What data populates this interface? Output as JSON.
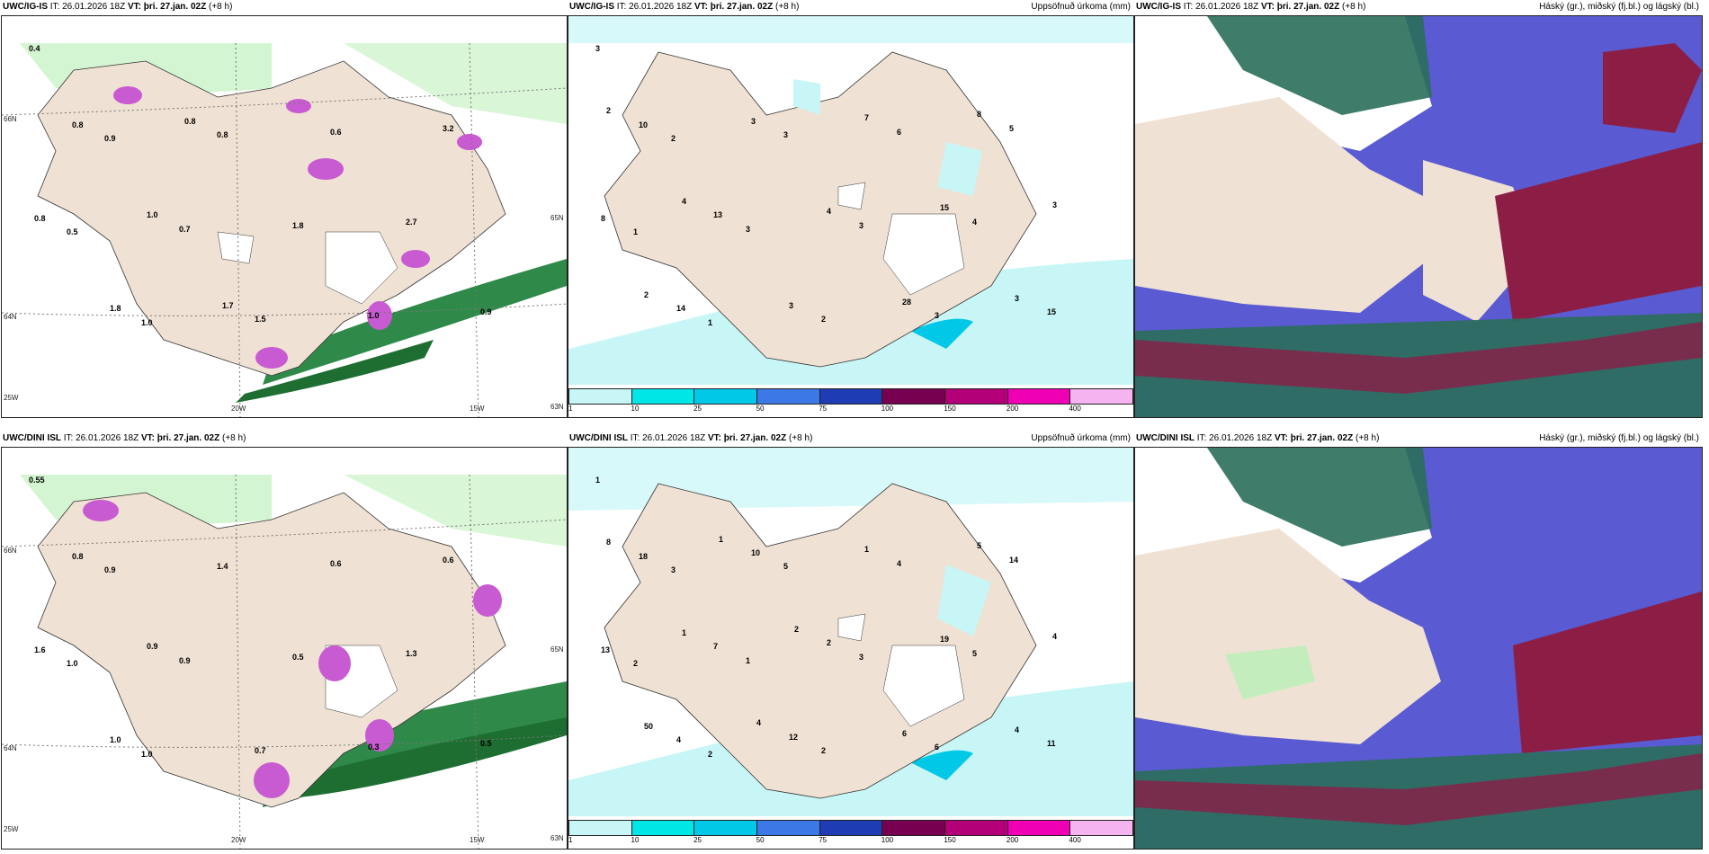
{
  "panels": [
    {
      "id": "top-left",
      "model": "UWC/IG-IS",
      "it_label": "IT: 26.01.2026 18Z",
      "vt_label": "VT: þri. 27.jan. 02Z",
      "lead": "(+8 h)",
      "right_title": "",
      "lat_labels": [
        "66N",
        "64N",
        "65N",
        "63N"
      ],
      "lon_labels": [
        "20W",
        "15W",
        "25W"
      ],
      "values": [
        "0.4",
        "0.5",
        "0.9",
        "1.0",
        "0.7",
        "0.8",
        "1.5",
        "1.8",
        "0.6",
        "1.0",
        "2.7",
        "3.2",
        "0.9",
        "0.8",
        "0.8",
        "1.8",
        "1.0",
        "0.8",
        "1.7"
      ]
    },
    {
      "id": "top-middle",
      "model": "UWC/IG-IS",
      "it_label": "IT: 26.01.2026 18Z",
      "vt_label": "VT: þri. 27.jan. 02Z",
      "lead": "(+8 h)",
      "right_title": "Uppsöfnuð úrkoma (mm)",
      "values": [
        "3",
        "1",
        "2",
        "1",
        "3",
        "3",
        "2",
        "3",
        "6",
        "3",
        "4",
        "5",
        "15",
        "8",
        "10",
        "14",
        "13",
        "3",
        "3",
        "4",
        "7",
        "28",
        "15",
        "8",
        "3",
        "3",
        "2",
        "2",
        "4"
      ],
      "colorbar": {
        "ticks": [
          "1",
          "10",
          "25",
          "50",
          "75",
          "100",
          "150",
          "200",
          "400"
        ],
        "colors": [
          "#c8f6f6",
          "#00e6e6",
          "#00c8e6",
          "#3c78e6",
          "#1e3cb4",
          "#780050",
          "#b40078",
          "#f000b4",
          "#f5b4f0"
        ]
      }
    },
    {
      "id": "top-right",
      "model": "UWC/IG-IS",
      "it_label": "IT: 26.01.2026 18Z",
      "vt_label": "VT: þri. 27.jan. 02Z",
      "lead": "(+8 h)",
      "right_title": "Háský (gr.), miðský (fj.bl.) og lágský (bl.)"
    },
    {
      "id": "bottom-left",
      "model": "UWC/DINI ISL",
      "it_label": "IT: 26.01.2026 18Z",
      "vt_label": "VT: þri. 27.jan. 02Z",
      "lead": "(+8 h)",
      "right_title": "",
      "lat_labels": [
        "66N",
        "64N",
        "65N",
        "63N"
      ],
      "lon_labels": [
        "20W",
        "15W",
        "25W"
      ],
      "values": [
        "0.55",
        "1.0",
        "0.9",
        "1.0",
        "0.9",
        "1.4",
        "0.7",
        "0.5",
        "0.6",
        "0.3",
        "1.3",
        "0.6",
        "0.5",
        "1.6",
        "0.8",
        "1.0",
        "0.9"
      ]
    },
    {
      "id": "bottom-middle",
      "model": "UWC/DINI ISL",
      "it_label": "IT: 26.01.2026 18Z",
      "vt_label": "VT: þri. 27.jan. 02Z",
      "lead": "(+8 h)",
      "right_title": "Uppsöfnuð úrkoma (mm)",
      "values": [
        "1",
        "2",
        "3",
        "2",
        "1",
        "5",
        "2",
        "3",
        "4",
        "6",
        "5",
        "14",
        "11",
        "13",
        "18",
        "4",
        "7",
        "10",
        "12",
        "2",
        "1",
        "6",
        "19",
        "5",
        "4",
        "4",
        "8",
        "50",
        "1",
        "1",
        "4",
        "2"
      ],
      "colorbar": {
        "ticks": [
          "1",
          "10",
          "25",
          "50",
          "75",
          "100",
          "150",
          "200",
          "400"
        ],
        "colors": [
          "#c8f6f6",
          "#00e6e6",
          "#00c8e6",
          "#3c78e6",
          "#1e3cb4",
          "#780050",
          "#b40078",
          "#f000b4",
          "#f5b4f0"
        ]
      }
    },
    {
      "id": "bottom-right",
      "model": "UWC/DINI ISL",
      "it_label": "IT: 26.01.2026 18Z",
      "vt_label": "VT: þri. 27.jan. 02Z",
      "lead": "(+8 h)",
      "right_title": "Háský (gr.), miðský (fj.bl.) og lágský (bl.)"
    }
  ],
  "colors": {
    "land": "#efe1d3",
    "sea": "#ffffff",
    "precip_light": "#c8f6f6",
    "wind_green_light": "#b9f0b9",
    "wind_green_dark": "#1e6e32",
    "snow_magenta": "#c85ad2",
    "cloud_high": "#2a6e5a",
    "cloud_mid": "#5a5ad2",
    "cloud_low": "#8c1e46"
  }
}
